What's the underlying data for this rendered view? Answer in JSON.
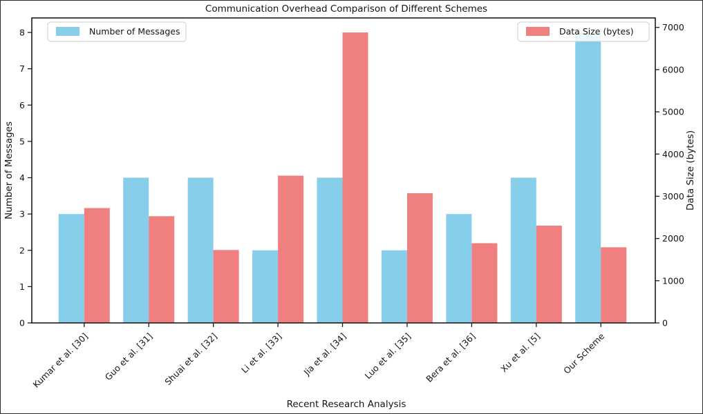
{
  "chart_data": {
    "type": "bar",
    "title": "Communication Overhead Comparison of Different Schemes",
    "xlabel": "Recent Research Analysis",
    "ylabel_left": "Number of Messages",
    "ylabel_right": "Data Size (bytes)",
    "categories": [
      "Kumar et al. [30]",
      "Guo et al. [31]",
      "Shuai et al. [32]",
      "Li et al. [33]",
      "Jia et al. [34]",
      "Luo et al. [35]",
      "Bera et al. [36]",
      "Xu et al. [5]",
      "Our Scheme"
    ],
    "series": [
      {
        "name": "Number of Messages",
        "axis": "left",
        "color": "#87CEEB",
        "values": [
          3,
          4,
          4,
          2,
          4,
          2,
          3,
          4,
          8
        ]
      },
      {
        "name": "Data Size (bytes)",
        "axis": "right",
        "color": "#F08080",
        "values": [
          2720,
          2528,
          1728,
          3488,
          6880,
          3072,
          1888,
          2304,
          1792
        ]
      }
    ],
    "left_axis": {
      "ticks": [
        0,
        1,
        2,
        3,
        4,
        5,
        6,
        7,
        8
      ],
      "lim": [
        0,
        8.4
      ]
    },
    "right_axis": {
      "ticks": [
        0,
        1000,
        2000,
        3000,
        4000,
        5000,
        6000,
        7000
      ],
      "lim": [
        0,
        7224
      ]
    },
    "grid": false,
    "legend_positions": [
      "upper left",
      "upper right"
    ],
    "frame_color": "#1a1a1a"
  }
}
